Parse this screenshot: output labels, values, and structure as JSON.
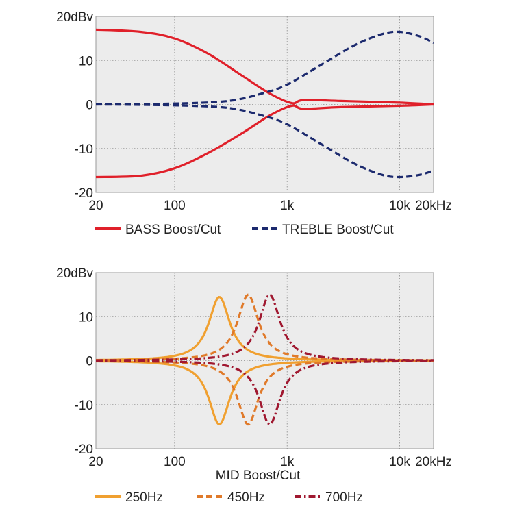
{
  "chart_data": [
    {
      "type": "line",
      "x_scale": "log",
      "xlim": [
        20,
        20000
      ],
      "ylim": [
        -20,
        20
      ],
      "y_ticks": [
        {
          "value": 20,
          "label": "20dBv"
        },
        {
          "value": 10,
          "label": "10"
        },
        {
          "value": 0,
          "label": "0"
        },
        {
          "value": -10,
          "label": "-10"
        },
        {
          "value": -20,
          "label": "-20"
        }
      ],
      "x_ticks": [
        {
          "value": 20,
          "label": "20"
        },
        {
          "value": 100,
          "label": "100"
        },
        {
          "value": 1000,
          "label": "1k"
        },
        {
          "value": 10000,
          "label": "10k"
        },
        {
          "value": 20000,
          "label": "20kHz"
        }
      ],
      "x_grid": [
        100,
        1000,
        10000
      ],
      "y_grid": [
        10,
        0,
        -10
      ],
      "xlabel": "",
      "legend": [
        {
          "label": "BASS Boost/Cut",
          "color": "#e0202a",
          "dash": "solid"
        },
        {
          "label": "TREBLE Boost/Cut",
          "color": "#1c2a6e",
          "dash": "dashed"
        }
      ],
      "series": [
        {
          "name": "BASS Boost",
          "color": "#e0202a",
          "dash": "solid",
          "points": [
            [
              20,
              17
            ],
            [
              50,
              16.5
            ],
            [
              100,
              15
            ],
            [
              200,
              11.5
            ],
            [
              400,
              6.5
            ],
            [
              700,
              2.5
            ],
            [
              1100,
              0.3
            ],
            [
              1400,
              1
            ],
            [
              3000,
              0.8
            ],
            [
              10000,
              0.4
            ],
            [
              20000,
              0
            ]
          ]
        },
        {
          "name": "BASS Cut",
          "color": "#e0202a",
          "dash": "solid",
          "points": [
            [
              20,
              -16.5
            ],
            [
              50,
              -16.2
            ],
            [
              100,
              -14.5
            ],
            [
              200,
              -11
            ],
            [
              400,
              -6.5
            ],
            [
              700,
              -2.5
            ],
            [
              1100,
              -0.3
            ],
            [
              1400,
              -1
            ],
            [
              3000,
              -0.6
            ],
            [
              10000,
              -0.3
            ],
            [
              20000,
              0
            ]
          ]
        },
        {
          "name": "TREBLE Boost",
          "color": "#1c2a6e",
          "dash": "dashed",
          "points": [
            [
              20,
              0
            ],
            [
              100,
              0.2
            ],
            [
              300,
              0.8
            ],
            [
              600,
              2.5
            ],
            [
              1000,
              4.5
            ],
            [
              2000,
              9
            ],
            [
              4000,
              13.5
            ],
            [
              7000,
              16
            ],
            [
              10000,
              16.5
            ],
            [
              15000,
              15.5
            ],
            [
              20000,
              14
            ]
          ]
        },
        {
          "name": "TREBLE Cut",
          "color": "#1c2a6e",
          "dash": "dashed",
          "points": [
            [
              20,
              0
            ],
            [
              100,
              -0.2
            ],
            [
              300,
              -0.8
            ],
            [
              600,
              -2.5
            ],
            [
              1000,
              -4.5
            ],
            [
              2000,
              -9
            ],
            [
              4000,
              -13.5
            ],
            [
              7000,
              -16
            ],
            [
              10000,
              -16.5
            ],
            [
              15000,
              -16
            ],
            [
              20000,
              -15
            ]
          ]
        }
      ]
    },
    {
      "type": "line",
      "x_scale": "log",
      "xlim": [
        20,
        20000
      ],
      "ylim": [
        -20,
        20
      ],
      "y_ticks": [
        {
          "value": 20,
          "label": "20dBv"
        },
        {
          "value": 10,
          "label": "10"
        },
        {
          "value": 0,
          "label": "0"
        },
        {
          "value": -10,
          "label": "-10"
        },
        {
          "value": -20,
          "label": "-20"
        }
      ],
      "x_ticks": [
        {
          "value": 20,
          "label": "20"
        },
        {
          "value": 100,
          "label": "100"
        },
        {
          "value": 1000,
          "label": "1k"
        },
        {
          "value": 10000,
          "label": "10k"
        },
        {
          "value": 20000,
          "label": "20kHz"
        }
      ],
      "x_grid": [
        100,
        1000,
        10000
      ],
      "y_grid": [
        10,
        0,
        -10
      ],
      "xlabel": "MID Boost/Cut",
      "legend": [
        {
          "label": "250Hz",
          "color": "#f0a030",
          "dash": "solid"
        },
        {
          "label": "450Hz",
          "color": "#e07a2a",
          "dash": "dashed"
        },
        {
          "label": "700Hz",
          "color": "#a01830",
          "dash": "dashdot"
        }
      ],
      "peaks": [
        {
          "name": "250Hz",
          "color": "#f0a030",
          "dash": "solid",
          "center_hz": 250,
          "boost_db": 14.5,
          "cut_db": -14.5,
          "width_oct": 1.6
        },
        {
          "name": "450Hz",
          "color": "#e07a2a",
          "dash": "dashed",
          "center_hz": 450,
          "boost_db": 15,
          "cut_db": -14.5,
          "width_oct": 1.6
        },
        {
          "name": "700Hz",
          "color": "#a01830",
          "dash": "dashdot",
          "center_hz": 700,
          "boost_db": 15,
          "cut_db": -14.5,
          "width_oct": 1.6
        }
      ]
    }
  ]
}
